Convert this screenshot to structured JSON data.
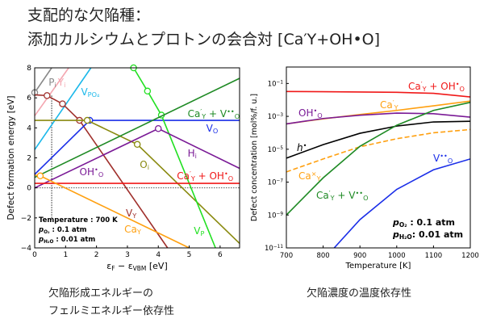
{
  "title": {
    "line1": "支配的な欠陥種：",
    "line2": "添加カルシウムとプロトンの会合対 [Ca′Y+OH•O]"
  },
  "captions": {
    "left_line1": "欠陥形成エネルギーの",
    "left_line2": "フェルミエネルギー依存性",
    "right": "欠陥濃度の温度依存性"
  },
  "chart_data": [
    {
      "type": "line",
      "xlabel": [
        {
          "t": "ε"
        },
        {
          "t": "F",
          "s": "sub"
        },
        {
          "t": " − ε"
        },
        {
          "t": "VBM",
          "s": "sub"
        },
        {
          "t": " [eV]"
        }
      ],
      "ylabel": "Defect formation energy [eV]",
      "xlim": [
        0,
        6.63
      ],
      "ylim": [
        -4,
        8
      ],
      "xticks": [
        0,
        1,
        2,
        3,
        4,
        5,
        6
      ],
      "yticks": [
        -4,
        -2,
        0,
        2,
        4,
        6,
        8
      ],
      "annotations": [
        [
          {
            "t": "Temperature : 700 K"
          }
        ],
        [
          {
            "t": "p",
            "i": 1
          },
          {
            "t": "O₂",
            "s": "sub"
          },
          {
            "t": " : 0.1 atm"
          }
        ],
        [
          {
            "t": "p",
            "i": 1
          },
          {
            "t": "H₂O",
            "s": "sub"
          },
          {
            "t": " : 0.01 atm"
          }
        ]
      ],
      "series": [
        {
          "label": [
            {
              "t": "P"
            },
            {
              "t": "i",
              "s": "sub"
            }
          ],
          "color": "#888888",
          "points": [
            [
              0,
              6.35
            ],
            [
              0.55,
              8
            ]
          ],
          "markers": [
            [
              0,
              6.35
            ]
          ]
        },
        {
          "label": [
            {
              "t": "Y"
            },
            {
              "t": "i",
              "s": "sub"
            }
          ],
          "color": "#f4a6b0",
          "points": [
            [
              0,
              4.8
            ],
            [
              1.1,
              8
            ]
          ],
          "markers": []
        },
        {
          "label": [
            {
              "t": "V"
            },
            {
              "t": "PO₄",
              "s": "sub"
            }
          ],
          "color": "#1ab8ea",
          "points": [
            [
              0,
              2.55
            ],
            [
              1.82,
              8
            ]
          ],
          "markers": []
        },
        {
          "label": [
            {
              "t": "V"
            },
            {
              "t": "Y",
              "s": "sub"
            }
          ],
          "color": "#a0302c",
          "points": [
            [
              0,
              6.2
            ],
            [
              0.4,
              6.15
            ],
            [
              0.9,
              5.6
            ],
            [
              1.45,
              4.5
            ],
            [
              4.3,
              -4
            ]
          ],
          "markers": [
            [
              0.4,
              6.15
            ],
            [
              0.9,
              5.6
            ],
            [
              1.45,
              4.5
            ]
          ]
        },
        {
          "label": [
            {
              "t": "V"
            },
            {
              "t": "O",
              "s": "sub"
            }
          ],
          "color": "#1a2ee8",
          "points": [
            [
              0,
              0.9
            ],
            [
              1.78,
              4.5
            ],
            [
              6.63,
              4.5
            ]
          ],
          "markers": [
            [
              1.78,
              4.5
            ]
          ]
        },
        {
          "label": [
            {
              "t": "O"
            },
            {
              "t": "i",
              "s": "sub"
            }
          ],
          "color": "#8a8a10",
          "points": [
            [
              0,
              4.5
            ],
            [
              1.7,
              4.5
            ],
            [
              3.32,
              2.9
            ],
            [
              6.63,
              -3.7
            ]
          ],
          "markers": [
            [
              1.7,
              4.5
            ],
            [
              3.32,
              2.9
            ]
          ]
        },
        {
          "label": [
            {
              "t": "V"
            },
            {
              "t": "P",
              "s": "sub"
            }
          ],
          "color": "#22e022",
          "points": [
            [
              3.2,
              8
            ],
            [
              3.65,
              6.45
            ],
            [
              4.1,
              4.85
            ],
            [
              5.85,
              -4
            ]
          ],
          "markers": [
            [
              3.2,
              8
            ],
            [
              3.65,
              6.45
            ],
            [
              4.1,
              4.85
            ]
          ]
        },
        {
          "label": [
            {
              "t": "Ca"
            },
            {
              "t": "′",
              "s": "sup"
            },
            {
              "t": "Y",
              "s": "sub"
            },
            {
              "t": " + V"
            },
            {
              "t": "••",
              "s": "sup"
            },
            {
              "t": "O",
              "s": "sub"
            }
          ],
          "color": "#1e8a24",
          "points": [
            [
              0,
              0.7
            ],
            [
              6.63,
              7.3
            ]
          ],
          "markers": []
        },
        {
          "label": [
            {
              "t": "H"
            },
            {
              "t": "i",
              "s": "sub"
            }
          ],
          "color": "#7a1a96",
          "points": [
            [
              0,
              0
            ],
            [
              4,
              3.95
            ],
            [
              6.63,
              1.3
            ]
          ],
          "markers": [
            [
              4,
              3.95
            ]
          ]
        },
        {
          "label": [
            {
              "t": "OH"
            },
            {
              "t": "•",
              "s": "sup"
            },
            {
              "t": "O",
              "s": "sub"
            }
          ],
          "color": "#7a1a96",
          "points": [],
          "markers": []
        },
        {
          "label": [
            {
              "t": "Ca"
            },
            {
              "t": "′",
              "s": "sup"
            },
            {
              "t": "Y",
              "s": "sub"
            },
            {
              "t": " + OH"
            },
            {
              "t": "•",
              "s": "sup"
            },
            {
              "t": "O",
              "s": "sub"
            }
          ],
          "color": "#f01818",
          "points": [
            [
              0,
              0.3
            ],
            [
              6.63,
              0.3
            ]
          ],
          "markers": []
        },
        {
          "label": [
            {
              "t": "Ca"
            },
            {
              "t": "Y",
              "s": "sub"
            }
          ],
          "color": "#ffa010",
          "points": [
            [
              0,
              0.85
            ],
            [
              0.18,
              0.8
            ],
            [
              5.0,
              -4
            ]
          ],
          "markers": [
            [
              0.18,
              0.8
            ]
          ]
        }
      ]
    },
    {
      "type": "line",
      "xlabel": [
        {
          "t": "Temperature [K]"
        }
      ],
      "ylabel": "Defect concentration [mol%/f. u.]",
      "xlim": [
        700,
        1200
      ],
      "ylim": [
        1e-11,
        1
      ],
      "yscale": "log",
      "xticks": [
        700,
        800,
        900,
        1000,
        1100,
        1200
      ],
      "yticks": [
        -11,
        -9,
        -7,
        -5,
        -3,
        -1
      ],
      "annotations": [
        [
          {
            "t": "p",
            "i": 1
          },
          {
            "t": "O₂",
            "s": "sub"
          },
          {
            "t": " : 0.1 atm"
          }
        ],
        [
          {
            "t": "p",
            "i": 1
          },
          {
            "t": "H₂O",
            "s": "sub"
          },
          {
            "t": ": 0.01 atm"
          }
        ]
      ],
      "x": [
        700,
        800,
        900,
        1000,
        1100,
        1200
      ],
      "series": [
        {
          "label": [
            {
              "t": "Ca"
            },
            {
              "t": "′",
              "s": "sup"
            },
            {
              "t": "Y",
              "s": "sub"
            },
            {
              "t": " + OH"
            },
            {
              "t": "•",
              "s": "sup"
            },
            {
              "t": "O",
              "s": "sub"
            }
          ],
          "color": "#f01818",
          "log10": [
            -1.49,
            -1.5,
            -1.52,
            -1.54,
            -1.6,
            -1.82
          ]
        },
        {
          "label": [
            {
              "t": "Ca"
            },
            {
              "t": "′",
              "s": "sup"
            },
            {
              "t": "Y",
              "s": "sub"
            }
          ],
          "color": "#ffa010",
          "log10": [
            -3.46,
            -3.15,
            -2.89,
            -2.64,
            -2.36,
            -2.07
          ]
        },
        {
          "label": [
            {
              "t": "OH"
            },
            {
              "t": "•",
              "s": "sup"
            },
            {
              "t": "O",
              "s": "sub"
            }
          ],
          "color": "#7a1a96",
          "log10": [
            -3.46,
            -3.13,
            -2.93,
            -2.8,
            -2.84,
            -3.05
          ]
        },
        {
          "label": [
            {
              "t": "h",
              "i": 1
            },
            {
              "t": "•",
              "s": "sup"
            }
          ],
          "color": "#000000",
          "log10": [
            -5.54,
            -4.72,
            -4.03,
            -3.59,
            -3.34,
            -3.3
          ]
        },
        {
          "label": [
            {
              "t": "Ca"
            },
            {
              "t": "×",
              "s": "sup"
            },
            {
              "t": "Y",
              "s": "sub"
            }
          ],
          "color": "#ffa010",
          "dashed": true,
          "log10": [
            -6.38,
            -5.59,
            -4.85,
            -4.36,
            -4.0,
            -3.8
          ]
        },
        {
          "label": [
            {
              "t": "Ca"
            },
            {
              "t": "′",
              "s": "sup"
            },
            {
              "t": "Y",
              "s": "sub"
            },
            {
              "t": " + V"
            },
            {
              "t": "••",
              "s": "sup"
            },
            {
              "t": "O",
              "s": "sub"
            }
          ],
          "color": "#1e8a24",
          "log10": [
            -9.0,
            -6.74,
            -4.82,
            -3.54,
            -2.64,
            -2.15
          ]
        },
        {
          "label": [
            {
              "t": "V"
            },
            {
              "t": "••",
              "s": "sup"
            },
            {
              "t": "O",
              "s": "sub"
            }
          ],
          "color": "#1a2ee8",
          "x": [
            830,
            900,
            1000,
            1100,
            1200
          ],
          "log10": [
            -11,
            -9.28,
            -7.44,
            -6.25,
            -5.59
          ]
        }
      ]
    }
  ]
}
